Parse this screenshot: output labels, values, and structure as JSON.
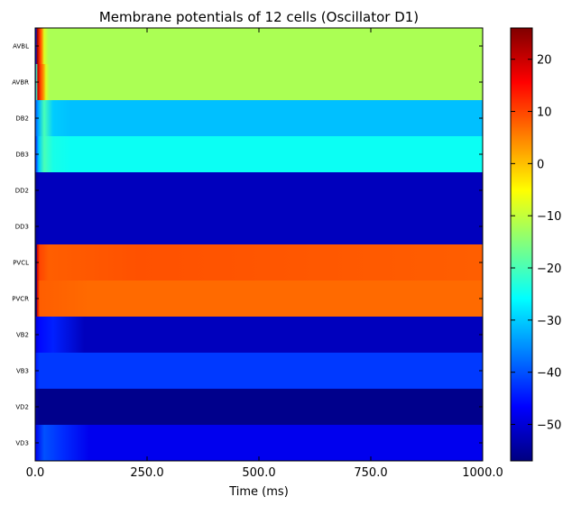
{
  "chart_data": {
    "type": "heatmap",
    "title": "Membrane potentials of 12 cells (Oscillator D1)",
    "xlabel": "Time (ms)",
    "ylabel": "",
    "xlim": [
      0,
      1000
    ],
    "x_ticks": [
      "0.0",
      "250.0",
      "500.0",
      "750.0",
      "1000.0"
    ],
    "rows": [
      {
        "name": "AVBL",
        "segments": [
          {
            "t": 0,
            "v": -57
          },
          {
            "t": 2,
            "v": -45
          },
          {
            "t": 4,
            "v": 25
          },
          {
            "t": 10,
            "v": 12
          },
          {
            "t": 15,
            "v": 5
          },
          {
            "t": 20,
            "v": -8
          },
          {
            "t": 30,
            "v": -12
          },
          {
            "t": 1000,
            "v": -12
          }
        ]
      },
      {
        "name": "AVBR",
        "segments": [
          {
            "t": 0,
            "v": -50
          },
          {
            "t": 3,
            "v": -20
          },
          {
            "t": 6,
            "v": 20
          },
          {
            "t": 12,
            "v": 10
          },
          {
            "t": 18,
            "v": 4
          },
          {
            "t": 24,
            "v": -8
          },
          {
            "t": 32,
            "v": -12
          },
          {
            "t": 1000,
            "v": -12
          }
        ]
      },
      {
        "name": "DB2",
        "segments": [
          {
            "t": 0,
            "v": -40
          },
          {
            "t": 8,
            "v": -32
          },
          {
            "t": 20,
            "v": -20
          },
          {
            "t": 40,
            "v": -30
          },
          {
            "t": 80,
            "v": -31
          },
          {
            "t": 1000,
            "v": -31
          }
        ]
      },
      {
        "name": "DB3",
        "segments": [
          {
            "t": 0,
            "v": -45
          },
          {
            "t": 8,
            "v": -30
          },
          {
            "t": 20,
            "v": -20
          },
          {
            "t": 40,
            "v": -24
          },
          {
            "t": 80,
            "v": -25
          },
          {
            "t": 1000,
            "v": -25
          }
        ]
      },
      {
        "name": "DD2",
        "segments": [
          {
            "t": 0,
            "v": -55
          },
          {
            "t": 10,
            "v": -52
          },
          {
            "t": 1000,
            "v": -52
          }
        ]
      },
      {
        "name": "DD3",
        "segments": [
          {
            "t": 0,
            "v": -55
          },
          {
            "t": 10,
            "v": -52
          },
          {
            "t": 1000,
            "v": -52
          }
        ]
      },
      {
        "name": "PVCL",
        "segments": [
          {
            "t": 0,
            "v": -57
          },
          {
            "t": 3,
            "v": -57
          },
          {
            "t": 4,
            "v": 20
          },
          {
            "t": 10,
            "v": 10
          },
          {
            "t": 30,
            "v": 8
          },
          {
            "t": 230,
            "v": 9
          },
          {
            "t": 1000,
            "v": 8
          }
        ]
      },
      {
        "name": "PVCR",
        "segments": [
          {
            "t": 0,
            "v": -57
          },
          {
            "t": 3,
            "v": -57
          },
          {
            "t": 4,
            "v": 20
          },
          {
            "t": 10,
            "v": 8
          },
          {
            "t": 120,
            "v": 7
          },
          {
            "t": 1000,
            "v": 7
          }
        ]
      },
      {
        "name": "VB2",
        "segments": [
          {
            "t": 0,
            "v": -50
          },
          {
            "t": 10,
            "v": -46
          },
          {
            "t": 40,
            "v": -44
          },
          {
            "t": 110,
            "v": -52
          },
          {
            "t": 1000,
            "v": -52
          }
        ]
      },
      {
        "name": "VB3",
        "segments": [
          {
            "t": 0,
            "v": -45
          },
          {
            "t": 10,
            "v": -42
          },
          {
            "t": 1000,
            "v": -42
          }
        ]
      },
      {
        "name": "VD2",
        "segments": [
          {
            "t": 0,
            "v": -55
          },
          {
            "t": 10,
            "v": -56
          },
          {
            "t": 1000,
            "v": -56
          }
        ]
      },
      {
        "name": "VD3",
        "segments": [
          {
            "t": 0,
            "v": -48
          },
          {
            "t": 20,
            "v": -40
          },
          {
            "t": 60,
            "v": -43
          },
          {
            "t": 120,
            "v": -48
          },
          {
            "t": 1000,
            "v": -48
          }
        ]
      }
    ],
    "colorbar": {
      "colormap": "jet",
      "vmin": -57,
      "vmax": 26,
      "ticks": [
        -50,
        -40,
        -30,
        -20,
        -10,
        0,
        10,
        20
      ],
      "tick_labels": [
        "−50",
        "−40",
        "−30",
        "−20",
        "−10",
        "0",
        "10",
        "20"
      ]
    }
  }
}
